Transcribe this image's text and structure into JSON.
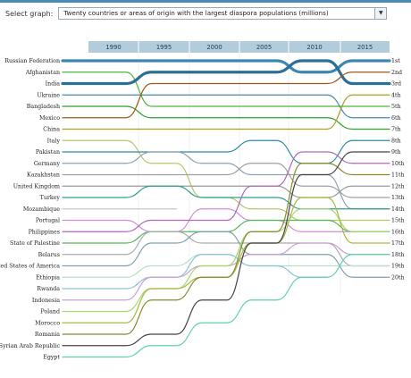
{
  "selector": {
    "label": "Select graph:",
    "value": "Twenty countries or areas of origin with the largest diaspora populations (millions)"
  },
  "chart_data": {
    "type": "bump",
    "years": [
      "1990",
      "1995",
      "2000",
      "2005",
      "2010",
      "2015"
    ],
    "rank_labels": [
      "1st",
      "2nd",
      "3rd",
      "4th",
      "5th",
      "6th",
      "7th",
      "8th",
      "9th",
      "10th",
      "11th",
      "12th",
      "13th",
      "14th",
      "15th",
      "16th",
      "17th",
      "18th",
      "19th",
      "20th"
    ],
    "countries": [
      "Russian Federation",
      "Afghanistan",
      "India",
      "Ukraine",
      "Bangladesh",
      "Mexico",
      "China",
      "Italy",
      "Pakistan",
      "Germany",
      "Kazakhstan",
      "United Kingdom",
      "Turkey",
      "Mozambique",
      "Portugal",
      "Philippines",
      "State of Palestine",
      "Belarus",
      "United States of America",
      "Ethiopia",
      "Rwanda",
      "Indonesia",
      "Poland",
      "Morocco",
      "Romania",
      "Syrian Arab Republic",
      "Egypt"
    ],
    "series": [
      {
        "name": "Russian Federation",
        "color": "#3d86b4",
        "ranks": [
          1,
          1,
          1,
          1,
          2,
          1
        ]
      },
      {
        "name": "Afghanistan",
        "color": "#4fb53c",
        "ranks": [
          2,
          5,
          5,
          5,
          5,
          5
        ]
      },
      {
        "name": "India",
        "color": "#2c6f95",
        "ranks": [
          3,
          2,
          2,
          2,
          1,
          3
        ]
      },
      {
        "name": "Ukraine",
        "color": "#4a88b0",
        "ranks": [
          4,
          4,
          4,
          4,
          4,
          6
        ]
      },
      {
        "name": "Bangladesh",
        "color": "#2f9e2f",
        "ranks": [
          5,
          6,
          6,
          6,
          6,
          7
        ]
      },
      {
        "name": "Mexico",
        "color": "#9b5a14",
        "ranks": [
          6,
          3,
          3,
          3,
          3,
          2
        ]
      },
      {
        "name": "China",
        "color": "#a9a020",
        "ranks": [
          7,
          7,
          7,
          7,
          7,
          4
        ]
      },
      {
        "name": "Italy",
        "color": "#b6c86a",
        "ranks": [
          8,
          10,
          13,
          14,
          15,
          15
        ]
      },
      {
        "name": "Pakistan",
        "color": "#2b8fa0",
        "ranks": [
          9,
          9,
          9,
          8,
          10,
          8
        ]
      },
      {
        "name": "Germany",
        "color": "#8fa3b3",
        "ranks": [
          10,
          9,
          10,
          11,
          11,
          14
        ]
      },
      {
        "name": "Kazakhstan",
        "color": "#a0a0a0",
        "ranks": [
          11,
          11,
          11,
          10,
          12,
          13
        ]
      },
      {
        "name": "United Kingdom",
        "color": "#9a9a9a",
        "ranks": [
          12,
          12,
          12,
          12,
          13,
          12
        ]
      },
      {
        "name": "Turkey",
        "color": "#2e9f8f",
        "ranks": [
          13,
          12,
          13,
          13,
          14,
          14
        ]
      },
      {
        "name": "Mozambique",
        "color": "#c8c8c8",
        "ranks": [
          14,
          14
        ]
      },
      {
        "name": "Portugal",
        "color": "#d28ed8",
        "ranks": [
          15,
          16,
          14,
          15,
          16,
          16
        ]
      },
      {
        "name": "Philippines",
        "color": "#b06ab8",
        "ranks": [
          16,
          15,
          15,
          12,
          9,
          10
        ]
      },
      {
        "name": "State of Palestine",
        "color": "#58b858",
        "ranks": [
          17,
          16,
          16,
          15,
          15,
          16
        ]
      },
      {
        "name": "Belarus",
        "color": "#ababab",
        "ranks": [
          18,
          16,
          17,
          17,
          17,
          19
        ]
      },
      {
        "name": "United States of America",
        "color": "#7f9fb2",
        "ranks": [
          19,
          17,
          16,
          18,
          18,
          20
        ]
      },
      {
        "name": "Ethiopia",
        "color": "#b9dfc8",
        "ranks": [
          20,
          19,
          18,
          19,
          19,
          19
        ]
      },
      {
        "name": "Rwanda",
        "color": "#8cc2d8",
        "ranks": [
          21,
          20,
          18,
          19,
          20
        ]
      },
      {
        "name": "Indonesia",
        "color": "#c9a0d2",
        "ranks": [
          22,
          20,
          19,
          18,
          17,
          18
        ]
      },
      {
        "name": "Poland",
        "color": "#a5d870",
        "ranks": [
          23,
          21,
          19,
          16,
          14,
          16
        ]
      },
      {
        "name": "Morocco",
        "color": "#a7b840",
        "ranks": [
          24,
          21,
          20,
          17,
          13,
          17
        ]
      },
      {
        "name": "Romania",
        "color": "#8a8a30",
        "ranks": [
          25,
          22,
          20,
          16,
          10,
          11
        ]
      },
      {
        "name": "Syrian Arab Republic",
        "color": "#444444",
        "ranks": [
          26,
          25,
          22,
          17,
          11,
          9
        ]
      },
      {
        "name": "Egypt",
        "color": "#5fd0b0",
        "ranks": [
          27,
          26,
          24,
          22,
          20,
          18
        ]
      }
    ]
  }
}
